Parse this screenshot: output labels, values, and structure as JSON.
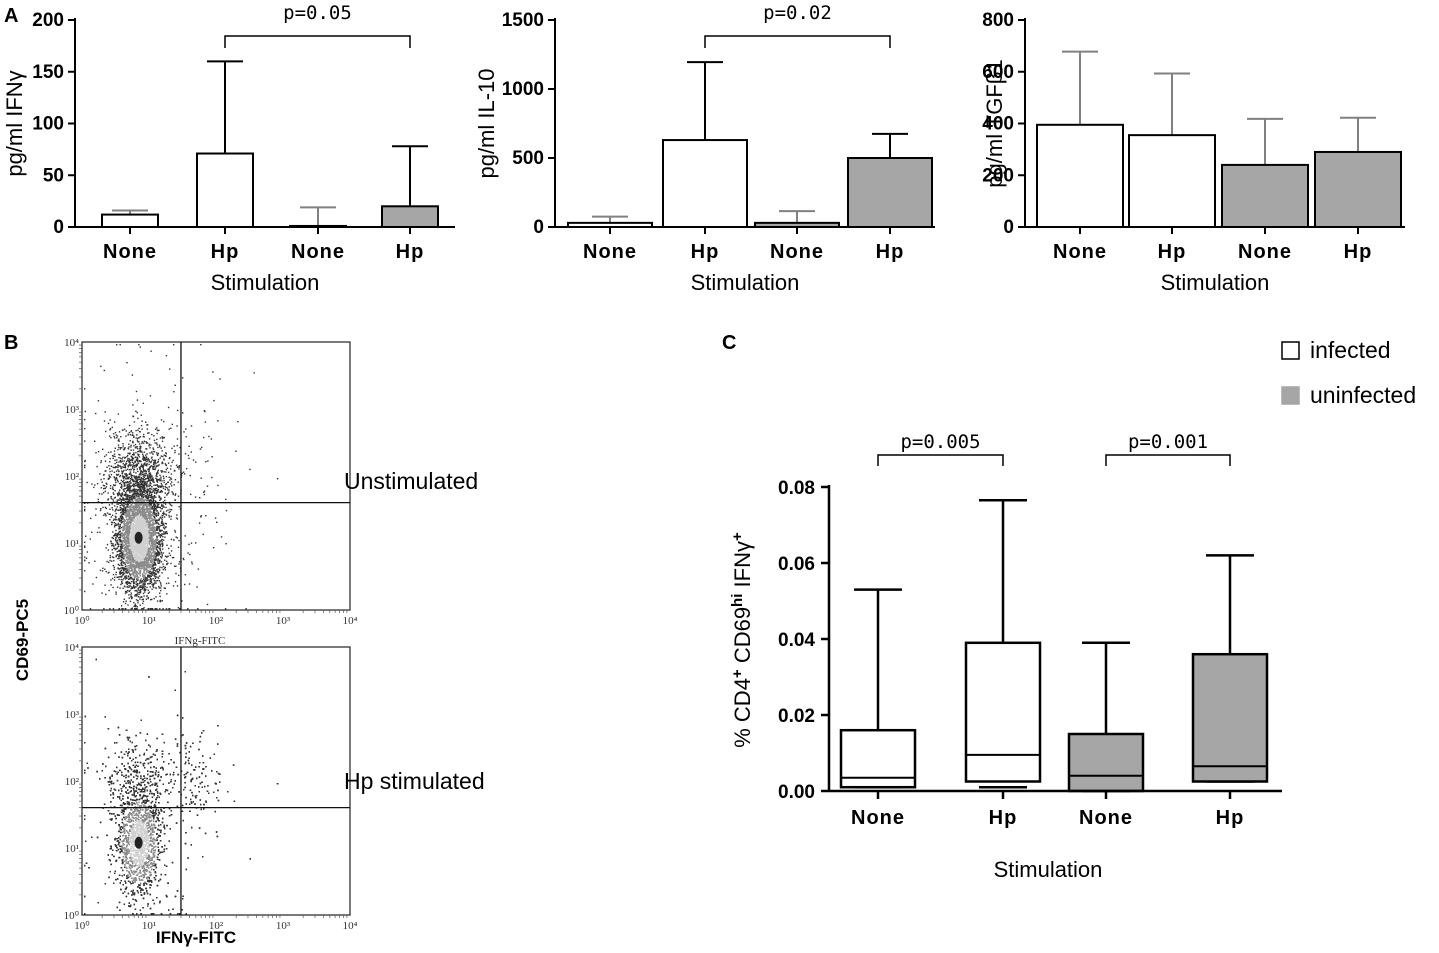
{
  "panels": {
    "a": "A",
    "b": "B",
    "c": "C"
  },
  "chart_data": [
    {
      "type": "bar",
      "panel": "A",
      "title": "",
      "xlabel": "Stimulation",
      "ylabel": "pg/ml IFNγ",
      "categories": [
        "None",
        "Hp",
        "None",
        "Hp"
      ],
      "groups": [
        "infected",
        "infected",
        "uninfected",
        "uninfected"
      ],
      "values": [
        12,
        71,
        1,
        20
      ],
      "error_upper": [
        16,
        160,
        19,
        78
      ],
      "ylim": [
        0,
        200
      ],
      "yticks": [
        0,
        50,
        100,
        150,
        200
      ],
      "significance": [
        {
          "from": 1,
          "to": 3,
          "label": "p=0.05"
        }
      ]
    },
    {
      "type": "bar",
      "panel": "A",
      "title": "",
      "xlabel": "Stimulation",
      "ylabel": "pg/ml IL-10",
      "categories": [
        "None",
        "Hp",
        "None",
        "Hp"
      ],
      "groups": [
        "infected",
        "infected",
        "uninfected",
        "uninfected"
      ],
      "values": [
        30,
        630,
        30,
        500
      ],
      "error_upper": [
        75,
        1195,
        115,
        675
      ],
      "ylim": [
        0,
        1500
      ],
      "yticks": [
        0,
        500,
        1000,
        1500
      ],
      "significance": [
        {
          "from": 1,
          "to": 3,
          "label": "p=0.02"
        }
      ]
    },
    {
      "type": "bar",
      "panel": "A",
      "title": "",
      "xlabel": "Stimulation",
      "ylabel": "pg/ml TGFβ1",
      "categories": [
        "None",
        "Hp",
        "None",
        "Hp"
      ],
      "groups": [
        "infected",
        "infected",
        "uninfected",
        "uninfected"
      ],
      "values": [
        395,
        355,
        240,
        290
      ],
      "error_upper": [
        678,
        593,
        418,
        422
      ],
      "ylim": [
        0,
        800
      ],
      "yticks": [
        0,
        200,
        400,
        600,
        800
      ],
      "significance": []
    },
    {
      "type": "scatter",
      "panel": "B",
      "subtype": "flow cytometry density plot",
      "ylabel": "CD69-PC5",
      "xlabel": "IFNγ-FITC",
      "plots": [
        {
          "label": "Unstimulated",
          "inner_xlabel": "IFNg-FITC"
        },
        {
          "label": "Hp stimulated",
          "inner_xlabel": ""
        }
      ],
      "axis_decades": [
        "10⁰",
        "10¹",
        "10²",
        "10³",
        "10⁴"
      ],
      "scale": "log",
      "range": [
        1,
        10000
      ]
    },
    {
      "type": "box",
      "panel": "C",
      "xlabel": "Stimulation",
      "ylabel_parts": [
        "% CD4",
        "+",
        " CD69",
        "hi",
        " IFNγ",
        "+"
      ],
      "categories": [
        "None",
        "Hp",
        "None",
        "Hp"
      ],
      "groups": [
        "infected",
        "infected",
        "uninfected",
        "uninfected"
      ],
      "boxes": [
        {
          "min": 0.001,
          "q1": 0.001,
          "median": 0.0035,
          "q3": 0.016,
          "max": 0.053
        },
        {
          "min": 0.001,
          "q1": 0.0025,
          "median": 0.0095,
          "q3": 0.039,
          "max": 0.0765
        },
        {
          "min": 0.0,
          "q1": 0.0,
          "median": 0.004,
          "q3": 0.015,
          "max": 0.039
        },
        {
          "min": 0.0025,
          "q1": 0.0025,
          "median": 0.0065,
          "q3": 0.036,
          "max": 0.062
        }
      ],
      "ylim": [
        0,
        0.08
      ],
      "yticks": [
        "0.00",
        "0.02",
        "0.04",
        "0.06",
        "0.08"
      ],
      "significance": [
        {
          "from": 0,
          "to": 1,
          "label": "p=0.005"
        },
        {
          "from": 2,
          "to": 3,
          "label": "p=0.001"
        }
      ]
    }
  ],
  "legend": [
    {
      "label": "infected",
      "color": "#ffffff"
    },
    {
      "label": "uninfected",
      "color": "#a6a6a6"
    }
  ],
  "colors": {
    "infected": "#ffffff",
    "uninfected": "#a6a6a6",
    "axis": "#000000",
    "error_gray": "#808080"
  }
}
